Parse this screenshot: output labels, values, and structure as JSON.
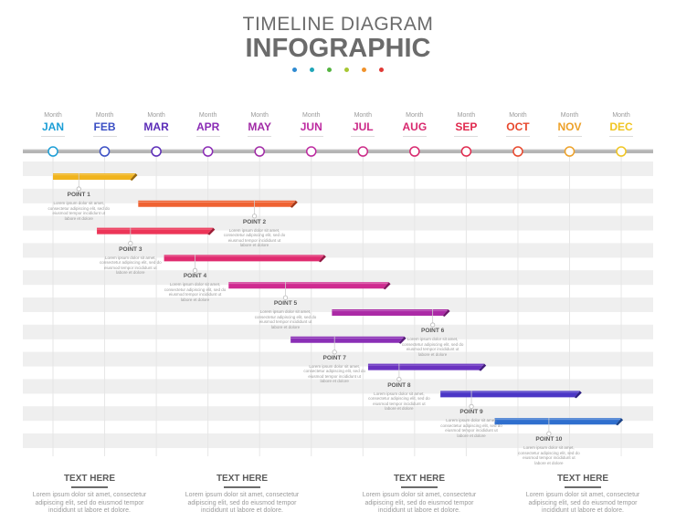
{
  "header": {
    "title_line1": "TIMELINE DIAGRAM",
    "title_line2": "INFOGRAPHIC",
    "dot_colors": [
      "#2f8ad1",
      "#20a6b8",
      "#55b441",
      "#a7c733",
      "#f0922b",
      "#e03a36"
    ]
  },
  "months": [
    {
      "sub": "Month",
      "name": "JAN",
      "color": "#1c9ed6"
    },
    {
      "sub": "Month",
      "name": "FEB",
      "color": "#3b4fc4"
    },
    {
      "sub": "Month",
      "name": "MAR",
      "color": "#5c2db8"
    },
    {
      "sub": "Month",
      "name": "APR",
      "color": "#8a2bb5"
    },
    {
      "sub": "Month",
      "name": "MAY",
      "color": "#a12ba6"
    },
    {
      "sub": "Month",
      "name": "JUN",
      "color": "#bd2aa0"
    },
    {
      "sub": "Month",
      "name": "JUL",
      "color": "#cc2a88"
    },
    {
      "sub": "Month",
      "name": "AUG",
      "color": "#d8286e"
    },
    {
      "sub": "Month",
      "name": "SEP",
      "color": "#e02a4e"
    },
    {
      "sub": "Month",
      "name": "OCT",
      "color": "#e8482d"
    },
    {
      "sub": "Month",
      "name": "NOV",
      "color": "#eda129"
    },
    {
      "sub": "Month",
      "name": "DEC",
      "color": "#f0c522"
    }
  ],
  "tasks": [
    {
      "label": "POINT 1",
      "start": 0.0,
      "end": 1.6,
      "color": "#f0b41e",
      "dark": "#9b6a0b",
      "anchor": 0.5,
      "text": "Lorem ipsum dolor sit amet, consectetur adipiscing elit, sed do eiusmod tempor incididunt ut labore et dolore"
    },
    {
      "label": "POINT 2",
      "start": 1.65,
      "end": 4.7,
      "color": "#ef6232",
      "dark": "#a3391a",
      "anchor": 3.9,
      "text": "Lorem ipsum dolor sit amet, consectetur adipiscing elit, sed do eiusmod tempor incididunt ut labore et dolore"
    },
    {
      "label": "POINT 3",
      "start": 0.85,
      "end": 3.1,
      "color": "#ec3558",
      "dark": "#9c1c35",
      "anchor": 1.5,
      "text": "Lorem ipsum dolor sit amet, consectetur adipiscing elit, sed do eiusmod tempor incididunt ut labore et dolore"
    },
    {
      "label": "POINT 4",
      "start": 2.15,
      "end": 5.25,
      "color": "#e02b6f",
      "dark": "#931743",
      "anchor": 2.75,
      "text": "Lorem ipsum dolor sit amet, consectetur adipiscing elit, sed do eiusmod tempor incididunt ut labore et dolore"
    },
    {
      "label": "POINT 5",
      "start": 3.4,
      "end": 6.5,
      "color": "#cf2a90",
      "dark": "#861761",
      "anchor": 4.5,
      "text": "Lorem ipsum dolor sit amet, consectetur adipiscing elit, sed do eiusmod tempor incididunt ut labore et dolore"
    },
    {
      "label": "POINT 6",
      "start": 5.4,
      "end": 7.65,
      "color": "#ab2aa6",
      "dark": "#6d176c",
      "anchor": 7.35,
      "text": "Lorem ipsum dolor sit amet, consectetur adipiscing elit, sed do eiusmod tempor incididunt ut labore et dolore"
    },
    {
      "label": "POINT 7",
      "start": 4.6,
      "end": 6.8,
      "color": "#8a2fb6",
      "dark": "#561a77",
      "anchor": 5.45,
      "text": "Lorem ipsum dolor sit amet, consectetur adipiscing elit, sed do eiusmod tempor incididunt ut labore et dolore"
    },
    {
      "label": "POINT 8",
      "start": 6.1,
      "end": 8.35,
      "color": "#6a32c0",
      "dark": "#421c7d",
      "anchor": 6.7,
      "text": "Lorem ipsum dolor sit amet, consectetur adipiscing elit, sed do eiusmod tempor incididunt ut labore et dolore"
    },
    {
      "label": "POINT 9",
      "start": 7.5,
      "end": 10.2,
      "color": "#4b36c6",
      "dark": "#2c1e82",
      "anchor": 8.1,
      "text": "Lorem ipsum dolor sit amet, consectetur adipiscing elit, sed do eiusmod tempor incididunt ut labore et dolore"
    },
    {
      "label": "POINT 10",
      "start": 8.55,
      "end": 11.0,
      "color": "#2f6fce",
      "dark": "#1a4287",
      "anchor": 9.6,
      "text": "Lorem ipsum dolor sit amet, consectetur adipiscing elit, sed do eiusmod tempor incididunt ut labore et dolore"
    }
  ],
  "footer": [
    {
      "title": "TEXT HERE",
      "text": "Lorem ipsum dolor sit amet, consectetur adipiscing elit, sed do eiusmod tempor incididunt ut labore et dolore."
    },
    {
      "title": "TEXT HERE",
      "text": "Lorem ipsum dolor sit amet, consectetur adipiscing elit, sed do eiusmod tempor incididunt ut labore et dolore."
    },
    {
      "title": "TEXT HERE",
      "text": "Lorem ipsum dolor sit amet, consectetur adipiscing elit, sed do eiusmod tempor incididunt ut labore et dolore."
    },
    {
      "title": "TEXT HERE",
      "text": "Lorem ipsum dolor sit amet, consectetur adipiscing elit, sed do eiusmod tempor incididunt ut labore et dolore."
    }
  ]
}
